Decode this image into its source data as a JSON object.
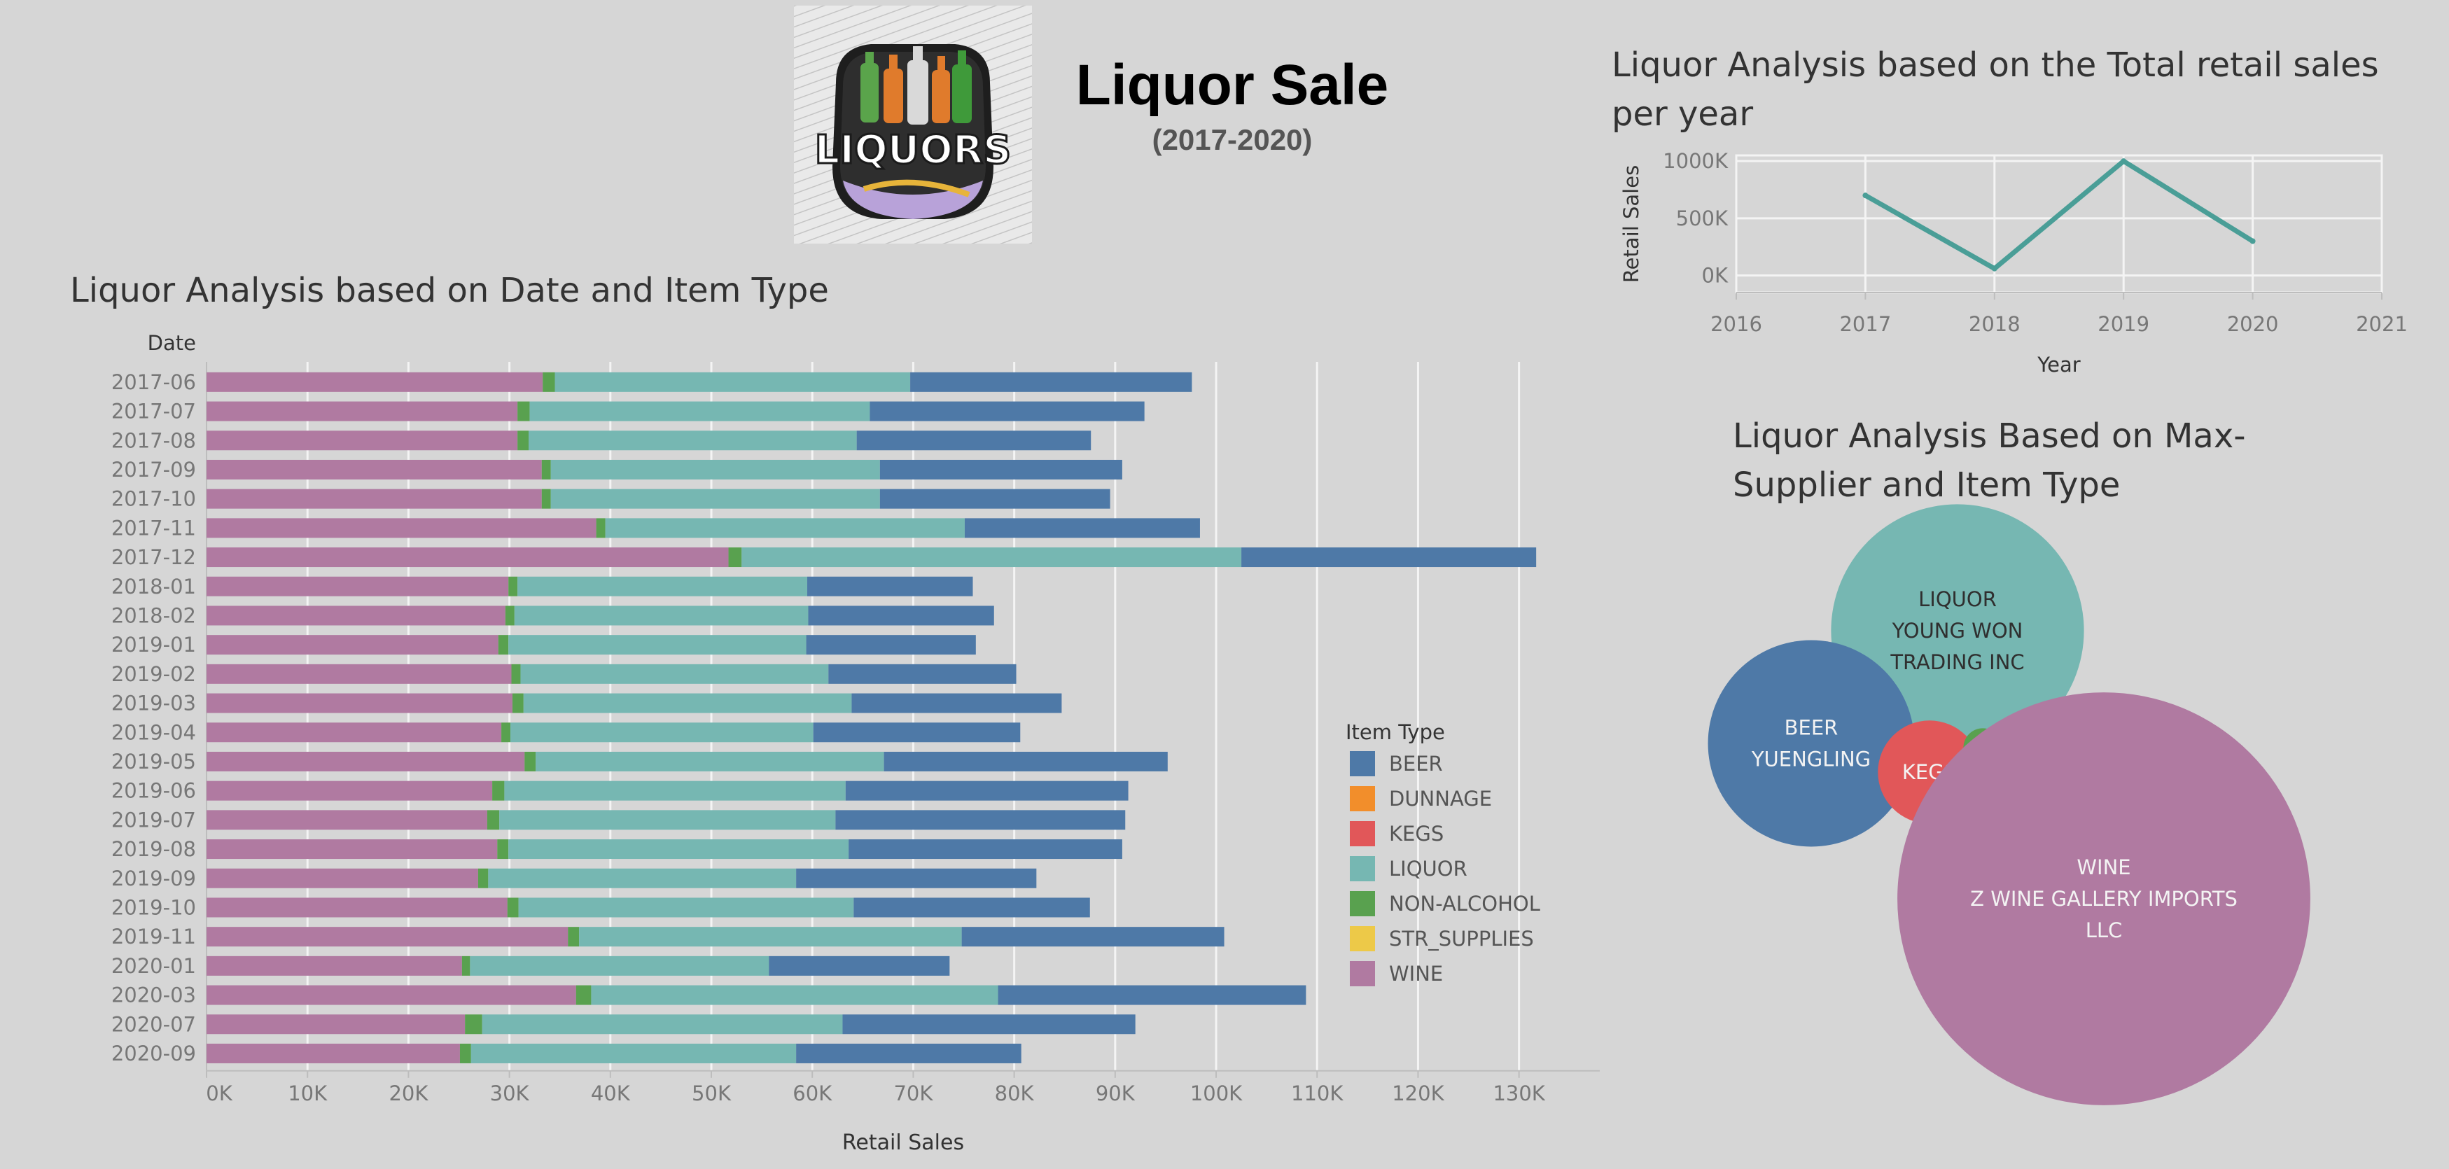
{
  "header": {
    "title": "Liquor Sale",
    "subtitle": "(2017-2020)",
    "logo_text": "LIQUORS"
  },
  "colors": {
    "BEER": "#4e79a7",
    "DUNNAGE": "#f28e2b",
    "KEGS": "#e15759",
    "LIQUOR": "#76b7b2",
    "NON-ALCOHOL": "#59a14f",
    "STR_SUPPLIES": "#edc948",
    "WINE": "#b07aa1"
  },
  "chart_data": [
    {
      "type": "bar",
      "orientation": "horizontal",
      "stacked": true,
      "title": "Liquor Analysis based on Date and Item Type",
      "xlabel": "Retail Sales",
      "ylabel": "Date",
      "xlim": [
        0,
        138000
      ],
      "x_ticks": [
        "0K",
        "10K",
        "20K",
        "30K",
        "40K",
        "50K",
        "60K",
        "70K",
        "80K",
        "90K",
        "100K",
        "110K",
        "120K",
        "130K"
      ],
      "grid": "vertical",
      "legend_placement": "right",
      "legend_title": "Item Type",
      "legend": [
        "BEER",
        "DUNNAGE",
        "KEGS",
        "LIQUOR",
        "NON-ALCOHOL",
        "STR_SUPPLIES",
        "WINE"
      ],
      "categories": [
        "2017-06",
        "2017-07",
        "2017-08",
        "2017-09",
        "2017-10",
        "2017-11",
        "2017-12",
        "2018-01",
        "2018-02",
        "2019-01",
        "2019-02",
        "2019-03",
        "2019-04",
        "2019-05",
        "2019-06",
        "2019-07",
        "2019-08",
        "2019-09",
        "2019-10",
        "2019-11",
        "2020-01",
        "2020-03",
        "2020-07",
        "2020-09"
      ],
      "series": [
        {
          "name": "WINE",
          "values": [
            33300,
            30800,
            30800,
            33200,
            33200,
            38600,
            51700,
            29900,
            29600,
            28900,
            30200,
            30300,
            29200,
            31500,
            28300,
            27800,
            28800,
            26900,
            29800,
            35800,
            25300,
            36600,
            25600,
            25100
          ]
        },
        {
          "name": "NON-ALCOHOL",
          "values": [
            1200,
            1200,
            1100,
            900,
            900,
            900,
            1300,
            900,
            900,
            1000,
            900,
            1100,
            900,
            1100,
            1200,
            1200,
            1100,
            1000,
            1100,
            1100,
            800,
            1500,
            1700,
            1100
          ]
        },
        {
          "name": "LIQUOR",
          "values": [
            35200,
            33700,
            32500,
            32600,
            32600,
            35600,
            49500,
            28700,
            29100,
            29500,
            30500,
            32500,
            30000,
            34500,
            33800,
            33300,
            33700,
            30500,
            33200,
            37900,
            29600,
            40300,
            35700,
            32200
          ]
        },
        {
          "name": "BEER",
          "values": [
            27900,
            27200,
            23200,
            24000,
            22800,
            23300,
            29200,
            16400,
            18400,
            16800,
            18600,
            20800,
            20500,
            28100,
            28000,
            28700,
            27100,
            23800,
            23400,
            26000,
            17900,
            30500,
            29000,
            22300
          ]
        }
      ]
    },
    {
      "type": "line",
      "title": "Liquor Analysis based on the Total retail sales per year",
      "xlabel": "Year",
      "ylabel": "Retail Sales",
      "xlim": [
        2016,
        2021
      ],
      "ylim": [
        -150000,
        1050000
      ],
      "x_ticks": [
        "2016",
        "2017",
        "2018",
        "2019",
        "2020",
        "2021"
      ],
      "y_ticks": [
        "0K",
        "500K",
        "1000K"
      ],
      "grid": true,
      "x": [
        2017,
        2018,
        2019,
        2020
      ],
      "values": [
        700000,
        60000,
        1000000,
        300000
      ]
    },
    {
      "type": "bubble",
      "title": "Liquor Analysis Based on Max-Supplier and Item Type",
      "bubbles": [
        {
          "item_type": "LIQUOR",
          "label": [
            "LIQUOR",
            "YOUNG WON",
            "TRADING INC"
          ],
          "value": 150000
        },
        {
          "item_type": "BEER",
          "label": [
            "BEER",
            "YUENGLING"
          ],
          "value": 100000
        },
        {
          "item_type": "KEGS",
          "label": [
            "KEGS"
          ],
          "value": 25000
        },
        {
          "item_type": "NON-ALCOHOL",
          "label": [],
          "value": 3500
        },
        {
          "item_type": "STR_SUPPLIES",
          "label": [],
          "value": 400
        },
        {
          "item_type": "WINE",
          "label": [
            "WINE",
            "Z WINE GALLERY IMPORTS",
            "LLC"
          ],
          "value": 400000
        }
      ]
    }
  ]
}
